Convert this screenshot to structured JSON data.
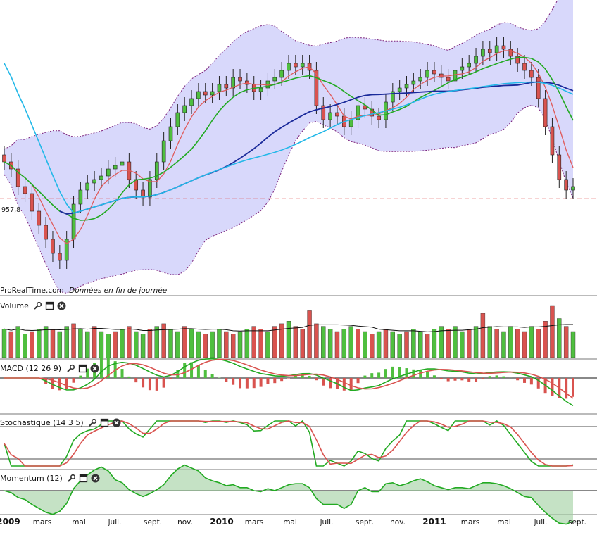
{
  "attribution": {
    "brand": "ProRealTime.com",
    "note": "Données en fin de journée"
  },
  "price_tag": "957,8",
  "panes": {
    "volume": {
      "label": "Volume"
    },
    "macd": {
      "label": "MACD (12 26 9)"
    },
    "stochastic": {
      "label": "Stochastique (14 3 5)"
    },
    "momentum": {
      "label": "Momentum (12)"
    }
  },
  "icons": [
    "wrench-icon",
    "window-icon",
    "close-icon"
  ],
  "colors": {
    "bull": "#4fbf3f",
    "bear": "#d9534f",
    "band_fill": "#d8d8fb",
    "band_edge": "#7a1f7a",
    "ma_red": "#e05a5a",
    "ma_green": "#22aa22",
    "ma_blue": "#1a2a9a",
    "ma_cyan": "#22b8e8",
    "support": "#e05050"
  },
  "chart_data": {
    "type": "line",
    "x_axis": {
      "labels": [
        {
          "text": "2009",
          "year": true
        },
        {
          "text": "mars",
          "year": false
        },
        {
          "text": "mai",
          "year": false
        },
        {
          "text": "juil.",
          "year": false
        },
        {
          "text": "sept.",
          "year": false
        },
        {
          "text": "nov.",
          "year": false
        },
        {
          "text": "2010",
          "year": true
        },
        {
          "text": "mars",
          "year": false
        },
        {
          "text": "mai",
          "year": false
        },
        {
          "text": "juil.",
          "year": false
        },
        {
          "text": "sept.",
          "year": false
        },
        {
          "text": "nov.",
          "year": false
        },
        {
          "text": "2011",
          "year": true
        },
        {
          "text": "mars",
          "year": false
        },
        {
          "text": "mai",
          "year": false
        },
        {
          "text": "juil.",
          "year": false
        },
        {
          "text": "sept.",
          "year": false
        }
      ]
    },
    "support_level": 957.8,
    "price_weekly_close": [
      1010,
      1000,
      975,
      965,
      940,
      920,
      900,
      880,
      870,
      900,
      950,
      970,
      980,
      985,
      990,
      1000,
      1005,
      1010,
      985,
      970,
      960,
      985,
      1010,
      1040,
      1060,
      1080,
      1090,
      1100,
      1110,
      1105,
      1110,
      1120,
      1115,
      1130,
      1125,
      1120,
      1110,
      1115,
      1125,
      1130,
      1140,
      1150,
      1145,
      1150,
      1140,
      1090,
      1070,
      1080,
      1075,
      1060,
      1070,
      1090,
      1085,
      1075,
      1070,
      1095,
      1110,
      1115,
      1120,
      1125,
      1130,
      1140,
      1135,
      1130,
      1125,
      1140,
      1145,
      1150,
      1160,
      1170,
      1165,
      1175,
      1170,
      1160,
      1150,
      1140,
      1130,
      1100,
      1060,
      1020,
      985,
      970,
      975
    ],
    "volume_bars": [
      0.55,
      0.5,
      0.6,
      0.45,
      0.5,
      0.55,
      0.6,
      0.55,
      0.5,
      0.6,
      0.65,
      0.55,
      0.5,
      0.6,
      0.5,
      0.45,
      0.5,
      0.55,
      0.6,
      0.5,
      0.45,
      0.55,
      0.6,
      0.65,
      0.55,
      0.5,
      0.6,
      0.55,
      0.5,
      0.45,
      0.5,
      0.55,
      0.5,
      0.45,
      0.5,
      0.55,
      0.6,
      0.55,
      0.5,
      0.6,
      0.65,
      0.7,
      0.6,
      0.55,
      0.9,
      0.65,
      0.6,
      0.55,
      0.5,
      0.55,
      0.6,
      0.55,
      0.5,
      0.45,
      0.5,
      0.55,
      0.5,
      0.45,
      0.5,
      0.55,
      0.5,
      0.45,
      0.55,
      0.6,
      0.55,
      0.6,
      0.5,
      0.55,
      0.6,
      0.85,
      0.6,
      0.55,
      0.5,
      0.6,
      0.55,
      0.5,
      0.6,
      0.55,
      0.7,
      1.0,
      0.75,
      0.6,
      0.5
    ],
    "volume_bull": [
      true,
      false,
      true,
      true,
      false,
      true,
      true,
      false,
      true,
      true,
      false,
      true,
      true,
      false,
      true,
      true,
      false,
      true,
      false,
      true,
      true,
      false,
      true,
      false,
      true,
      true,
      false,
      true,
      true,
      false,
      true,
      true,
      false,
      false,
      true,
      true,
      false,
      false,
      true,
      false,
      false,
      true,
      false,
      false,
      false,
      false,
      true,
      true,
      false,
      true,
      true,
      false,
      true,
      false,
      true,
      false,
      true,
      true,
      false,
      true,
      true,
      false,
      true,
      true,
      false,
      true,
      true,
      false,
      true,
      false,
      true,
      false,
      true,
      true,
      false,
      false,
      true,
      false,
      false,
      false,
      true,
      false,
      true
    ]
  }
}
